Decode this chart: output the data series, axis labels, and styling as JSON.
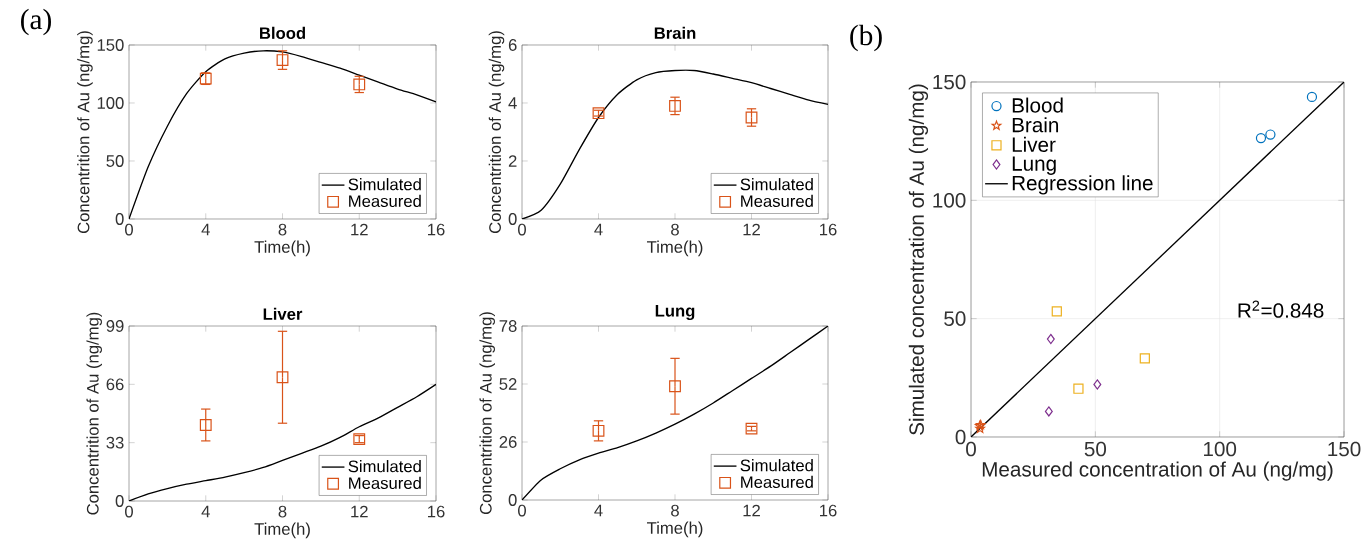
{
  "chart_data": [
    {
      "type": "line",
      "title": "Blood",
      "xlabel": "Time(h)",
      "ylabel": "Concentrition of Au (ng/mg)",
      "xlim": [
        0,
        16
      ],
      "xticks": [
        0,
        4,
        8,
        12,
        16
      ],
      "ylim": [
        0,
        150
      ],
      "yticks": [
        0,
        50,
        100,
        150
      ],
      "legend": "bottom right",
      "annotations": [
        "(a)"
      ],
      "series": [
        {
          "name": "Simulated",
          "type": "line",
          "color": "#000000",
          "marker": "none",
          "x": [
            0,
            1,
            2,
            3,
            4,
            5,
            6,
            7,
            8,
            9,
            10,
            11,
            12,
            13,
            14,
            15,
            16
          ],
          "values": [
            0,
            45,
            80,
            108,
            127,
            138,
            143,
            145,
            144,
            140,
            135,
            130,
            124,
            118,
            112,
            107,
            101
          ]
        },
        {
          "name": "Measured",
          "type": "scatter",
          "color": "#d95319",
          "marker": "square",
          "x": [
            4,
            8,
            12
          ],
          "values": [
            121,
            137,
            116
          ],
          "errors": [
            5,
            8,
            7
          ]
        }
      ]
    },
    {
      "type": "line",
      "title": "Brain",
      "xlabel": "Time(h)",
      "ylabel": "Concentrition of Au (ng/mg)",
      "xlim": [
        0,
        16
      ],
      "xticks": [
        0,
        4,
        8,
        12,
        16
      ],
      "ylim": [
        0,
        6
      ],
      "yticks": [
        0,
        2,
        4,
        6
      ],
      "legend": "bottom right",
      "series": [
        {
          "name": "Simulated",
          "type": "line",
          "color": "#000000",
          "marker": "none",
          "x": [
            0,
            1,
            2,
            3,
            4,
            5,
            6,
            7,
            8,
            9,
            10,
            11,
            12,
            13,
            14,
            15,
            16
          ],
          "values": [
            0,
            0.3,
            1.2,
            2.4,
            3.5,
            4.3,
            4.8,
            5.05,
            5.12,
            5.12,
            5.0,
            4.85,
            4.7,
            4.5,
            4.3,
            4.1,
            3.95
          ]
        },
        {
          "name": "Measured",
          "type": "scatter",
          "color": "#d95319",
          "marker": "square",
          "x": [
            4,
            8,
            12
          ],
          "values": [
            3.65,
            3.9,
            3.5
          ],
          "errors": [
            0.1,
            0.3,
            0.3
          ]
        }
      ]
    },
    {
      "type": "line",
      "title": "Liver",
      "xlabel": "Time(h)",
      "ylabel": "Concentrition of Au (ng/mg)",
      "xlim": [
        0,
        16
      ],
      "xticks": [
        0,
        4,
        8,
        12,
        16
      ],
      "ylim": [
        0,
        99
      ],
      "yticks": [
        0,
        33,
        66,
        99
      ],
      "legend": "bottom right",
      "series": [
        {
          "name": "Simulated",
          "type": "line",
          "color": "#000000",
          "marker": "none",
          "x": [
            0,
            1,
            2,
            3,
            4,
            5,
            6,
            7,
            8,
            9,
            10,
            11,
            12,
            13,
            14,
            15,
            16
          ],
          "values": [
            0,
            4,
            7,
            9.5,
            11.5,
            13.5,
            16,
            19,
            23,
            27,
            31,
            36,
            42,
            47,
            53,
            59,
            66
          ]
        },
        {
          "name": "Measured",
          "type": "scatter",
          "color": "#d95319",
          "marker": "square",
          "x": [
            4,
            8,
            12
          ],
          "values": [
            43,
            70,
            35
          ],
          "errors": [
            9,
            [
              44,
              96
            ],
            2
          ]
        }
      ]
    },
    {
      "type": "line",
      "title": "Lung",
      "xlabel": "Time(h)",
      "ylabel": "Concentrition of Au (ng/mg)",
      "xlim": [
        0,
        16
      ],
      "xticks": [
        0,
        4,
        8,
        12,
        16
      ],
      "ylim": [
        0,
        78
      ],
      "yticks": [
        0,
        26,
        52,
        78
      ],
      "legend": "bottom right",
      "series": [
        {
          "name": "Simulated",
          "type": "line",
          "color": "#000000",
          "marker": "none",
          "x": [
            0,
            1,
            2,
            3,
            4,
            5,
            6,
            7,
            8,
            9,
            10,
            11,
            12,
            13,
            14,
            15,
            16
          ],
          "values": [
            0,
            9,
            14,
            18,
            21,
            23.5,
            26.5,
            30,
            34,
            38.5,
            43.5,
            49,
            54.5,
            60,
            66,
            72,
            78
          ]
        },
        {
          "name": "Measured",
          "type": "scatter",
          "color": "#d95319",
          "marker": "square",
          "x": [
            4,
            8,
            12
          ],
          "values": [
            31,
            51,
            32
          ],
          "errors": [
            4.5,
            12.5,
            1
          ]
        }
      ]
    },
    {
      "type": "scatter",
      "xlabel": "Measured concentration of Au (ng/mg)",
      "ylabel": "Simulated concentration of Au (ng/mg)",
      "xlim": [
        0,
        150
      ],
      "xticks": [
        0,
        50,
        100,
        150
      ],
      "ylim": [
        0,
        150
      ],
      "yticks": [
        0,
        50,
        100,
        150
      ],
      "grid": true,
      "legend": "top left",
      "annotations": [
        "(b)",
        "R$^{2}$=0.848"
      ],
      "series": [
        {
          "name": "Blood",
          "color": "#0072bd",
          "marker": "circle",
          "x": [
            116.6,
            120.4,
            137.1
          ],
          "values": [
            126.3,
            127.8,
            143.7
          ]
        },
        {
          "name": "Brain",
          "color": "#d95319",
          "marker": "star",
          "x": [
            3.65,
            3.9,
            3.5
          ],
          "values": [
            3.5,
            5.1,
            4.7
          ]
        },
        {
          "name": "Liver",
          "color": "#edb120",
          "marker": "square",
          "x": [
            34.5,
            43.2,
            69.9
          ],
          "values": [
            53.1,
            20.4,
            33.2
          ]
        },
        {
          "name": "Lung",
          "color": "#7e2f8e",
          "marker": "diamond",
          "x": [
            32.1,
            31.3,
            50.8
          ],
          "values": [
            41.4,
            10.8,
            22.2
          ]
        },
        {
          "name": "Regression line",
          "type": "line",
          "color": "#000000",
          "marker": "none",
          "x": [
            0,
            150
          ],
          "values": [
            0,
            150
          ]
        }
      ]
    }
  ]
}
